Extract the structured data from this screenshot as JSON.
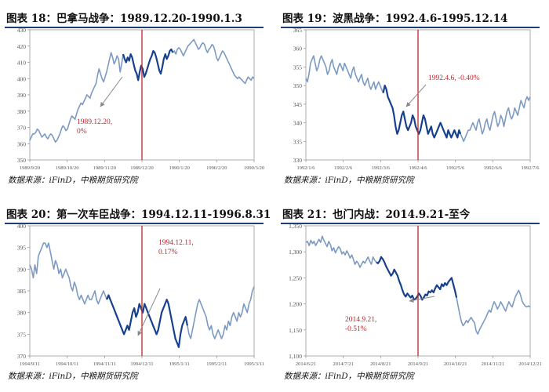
{
  "source_note": "数据来源：iFinD，中粮期货研究院",
  "colors": {
    "line_light": "#7c9ac3",
    "line_dark": "#17418d",
    "event_line": "#c0262d",
    "annotation": "#c0262d",
    "title_rule": "#1f3e78"
  },
  "chart_data": [
    {
      "type": "line",
      "title": "图表 18：巴拿马战争：1989.12.20-1990.1.3",
      "ylim": [
        350,
        430
      ],
      "yticks": [
        "350",
        "360",
        "370",
        "380",
        "390",
        "400",
        "410",
        "420",
        "430"
      ],
      "xticks": [
        "1989/9/20",
        "1989/10/20",
        "1989/11/20",
        "1989/12/20",
        "1990/1/20",
        "1990/2/20",
        "1990/3/20"
      ],
      "event_label": "1989.12.20",
      "annotation": [
        "1989.12.20,",
        "0%"
      ],
      "dark_range": [
        62,
        95
      ],
      "values": [
        362,
        364,
        366,
        366,
        367,
        369,
        368,
        366,
        364,
        365,
        366,
        364,
        363,
        365,
        366,
        365,
        363,
        361,
        362,
        364,
        366,
        369,
        371,
        370,
        368,
        369,
        372,
        375,
        377,
        376,
        375,
        378,
        381,
        383,
        385,
        384,
        386,
        388,
        390,
        389,
        388,
        391,
        393,
        395,
        397,
        402,
        406,
        403,
        400,
        398,
        401,
        404,
        408,
        412,
        416,
        413,
        409,
        411,
        414,
        412,
        404,
        409,
        415,
        412,
        410,
        413,
        411,
        415,
        413,
        409,
        405,
        403,
        399,
        404,
        408,
        406,
        401,
        403,
        406,
        409,
        412,
        414,
        417,
        416,
        413,
        409,
        405,
        403,
        407,
        412,
        415,
        412,
        414,
        417,
        418,
        416,
        417,
        415,
        418,
        419,
        418,
        416,
        414,
        416,
        418,
        420,
        421,
        422,
        423,
        424,
        422,
        420,
        418,
        419,
        421,
        422,
        421,
        418,
        416,
        418,
        419,
        421,
        420,
        417,
        413,
        411,
        413,
        415,
        417,
        416,
        414,
        412,
        410,
        408,
        406,
        404,
        402,
        401,
        400,
        401,
        400,
        399,
        398,
        397,
        399,
        401,
        400,
        399,
        401,
        400
      ]
    },
    {
      "type": "line",
      "title": "图表 19：波黑战争：1992.4.6-1995.12.14",
      "ylim": [
        330,
        365
      ],
      "yticks": [
        "330",
        "335",
        "340",
        "345",
        "350",
        "355",
        "360",
        "365"
      ],
      "xticks": [
        "1992/1/6",
        "1992/2/6",
        "1992/3/6",
        "1992/4/6",
        "1992/5/6",
        "1992/6/6",
        "1992/7/6"
      ],
      "event_label": "1992.4.6",
      "annotation": [
        "1992.4.6,  -0.40%"
      ],
      "dark_range": [
        50,
        100
      ],
      "values": [
        352,
        351,
        353,
        356,
        357,
        358,
        356,
        354,
        355,
        357,
        358,
        357,
        356,
        355,
        353,
        354,
        356,
        357,
        355,
        354,
        353,
        355,
        356,
        355,
        354,
        356,
        355,
        354,
        353,
        352,
        354,
        355,
        353,
        352,
        351,
        352,
        353,
        351,
        350,
        351,
        352,
        350,
        349,
        350,
        351,
        349,
        350,
        351,
        350,
        349,
        348,
        350,
        349,
        347,
        346,
        345,
        344,
        342,
        339,
        337,
        338,
        340,
        342,
        343,
        341,
        339,
        338,
        339,
        340,
        342,
        341,
        339,
        338,
        337,
        338,
        340,
        342,
        341,
        339,
        337,
        338,
        339,
        337,
        336,
        337,
        338,
        339,
        340,
        339,
        338,
        337,
        336,
        338,
        337,
        336,
        337,
        338,
        337,
        336,
        338,
        337,
        336,
        335,
        336,
        337,
        338,
        338,
        339,
        340,
        339,
        338,
        340,
        341,
        339,
        337,
        338,
        340,
        341,
        339,
        338,
        340,
        342,
        343,
        341,
        339,
        340,
        342,
        341,
        339,
        341,
        343,
        344,
        342,
        341,
        342,
        344,
        343,
        342,
        344,
        346,
        345,
        344,
        346,
        347,
        346,
        347
      ]
    },
    {
      "type": "line",
      "title": "图表 20：第一次车臣战争：1994.12.11-1996.8.31",
      "ylim": [
        370,
        400
      ],
      "yticks": [
        "370",
        "375",
        "380",
        "385",
        "390",
        "395",
        "400"
      ],
      "xticks": [
        "1994/9/11",
        "1994/10/11",
        "1994/11/11",
        "1994/12/11",
        "1995/1/11",
        "1995/2/11",
        "1995/3/11"
      ],
      "event_label": "1994.12.11",
      "annotation": [
        "1994.12.11,",
        "0.17%"
      ],
      "dark_range": [
        45,
        92
      ],
      "values": [
        391,
        390,
        388,
        391,
        389,
        393,
        394,
        395,
        396,
        396,
        395,
        396,
        394,
        392,
        390,
        392,
        391,
        389,
        390,
        388,
        389,
        390,
        389,
        388,
        386,
        385,
        387,
        386,
        384,
        383,
        384,
        383,
        382,
        383,
        384,
        383,
        383,
        384,
        385,
        383,
        382,
        383,
        384,
        385,
        384,
        383,
        384,
        383,
        382,
        381,
        380,
        379,
        378,
        377,
        376,
        375,
        376,
        377,
        376,
        378,
        380,
        381,
        379,
        380,
        382,
        381,
        380,
        382,
        381,
        380,
        379,
        378,
        377,
        376,
        375,
        376,
        378,
        380,
        381,
        382,
        383,
        382,
        380,
        378,
        376,
        374,
        373,
        372,
        375,
        377,
        378,
        379,
        377,
        375,
        374,
        376,
        378,
        380,
        382,
        383,
        382,
        381,
        380,
        379,
        377,
        376,
        377,
        375,
        374,
        375,
        376,
        375,
        374,
        375,
        377,
        376,
        378,
        377,
        379,
        380,
        379,
        378,
        380,
        379,
        380,
        382,
        381,
        380,
        382,
        383,
        385,
        386
      ]
    },
    {
      "type": "line",
      "title": "图表 21：也门内战：2014.9.21-至今",
      "ylim": [
        1100,
        1350
      ],
      "yticks": [
        "1,100",
        "1,150",
        "1,200",
        "1,250",
        "1,300",
        "1,350"
      ],
      "xticks": [
        "2014/6/21",
        "2014/7/21",
        "2014/8/21",
        "2014/9/21",
        "2014/10/21",
        "2014/11/21",
        "2014/12/21"
      ],
      "event_label": "2014.9.21",
      "annotation": [
        "2014.9.21,",
        "-0.51%"
      ],
      "dark_range": [
        43,
        92
      ],
      "values": [
        1318,
        1320,
        1312,
        1322,
        1316,
        1320,
        1312,
        1318,
        1324,
        1318,
        1330,
        1322,
        1316,
        1310,
        1320,
        1314,
        1302,
        1308,
        1298,
        1304,
        1310,
        1306,
        1296,
        1300,
        1294,
        1302,
        1296,
        1288,
        1294,
        1286,
        1276,
        1282,
        1278,
        1270,
        1276,
        1282,
        1278,
        1284,
        1290,
        1282,
        1276,
        1290,
        1284,
        1280,
        1278,
        1282,
        1290,
        1286,
        1280,
        1272,
        1266,
        1260,
        1254,
        1258,
        1266,
        1260,
        1254,
        1244,
        1236,
        1226,
        1218,
        1214,
        1220,
        1216,
        1212,
        1216,
        1208,
        1210,
        1214,
        1220,
        1216,
        1208,
        1212,
        1218,
        1216,
        1224,
        1222,
        1226,
        1222,
        1230,
        1236,
        1232,
        1228,
        1238,
        1234,
        1240,
        1236,
        1242,
        1246,
        1250,
        1238,
        1226,
        1212,
        1196,
        1180,
        1166,
        1158,
        1162,
        1168,
        1164,
        1170,
        1174,
        1168,
        1164,
        1148,
        1142,
        1150,
        1156,
        1162,
        1168,
        1174,
        1182,
        1188,
        1184,
        1196,
        1204,
        1198,
        1190,
        1196,
        1204,
        1198,
        1192,
        1186,
        1196,
        1204,
        1198,
        1194,
        1204,
        1214,
        1220,
        1226,
        1218,
        1206,
        1200,
        1196,
        1194,
        1196,
        1194
      ]
    }
  ]
}
